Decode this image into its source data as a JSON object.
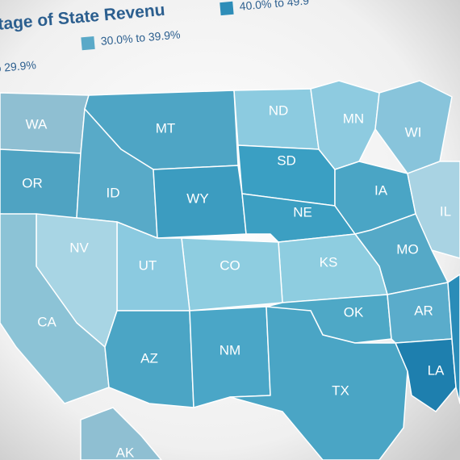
{
  "header": {
    "title": "tage of State Revenu"
  },
  "legend": [
    {
      "label": "% to 29.9%",
      "color": "#8fc9dd"
    },
    {
      "label": "30.0% to 39.9%",
      "color": "#5aa9c8"
    },
    {
      "label": "40.0% to 49.9",
      "color": "#2e8db8"
    }
  ],
  "states": [
    {
      "label": "WA",
      "color": "#8fbfd2"
    },
    {
      "label": "OR",
      "color": "#4fa3c2"
    },
    {
      "label": "MT",
      "color": "#4ea5c5"
    },
    {
      "label": "ID",
      "color": "#58aac8"
    },
    {
      "label": "WY",
      "color": "#3c9cc0"
    },
    {
      "label": "ND",
      "color": "#8ccbe0"
    },
    {
      "label": "SD",
      "color": "#3a9fc3"
    },
    {
      "label": "NE",
      "color": "#3c9fc2"
    },
    {
      "label": "MN",
      "color": "#8ecbe0"
    },
    {
      "label": "IA",
      "color": "#4aa5c5"
    },
    {
      "label": "WI",
      "color": "#88c4db"
    },
    {
      "label": "IL",
      "color": "#a9d3e3"
    },
    {
      "label": "MO",
      "color": "#55a9c7"
    },
    {
      "label": "KS",
      "color": "#8ecde0"
    },
    {
      "label": "CO",
      "color": "#8ecde0"
    },
    {
      "label": "UT",
      "color": "#8bcae0"
    },
    {
      "label": "NV",
      "color": "#a8d5e4"
    },
    {
      "label": "CA",
      "color": "#8cc3d6"
    },
    {
      "label": "AZ",
      "color": "#4ba5c5"
    },
    {
      "label": "NM",
      "color": "#4aa6c7"
    },
    {
      "label": "OK",
      "color": "#4ea8c6"
    },
    {
      "label": "TX",
      "color": "#4aa5c5"
    },
    {
      "label": "AR",
      "color": "#5aaccb"
    },
    {
      "label": "LA",
      "color": "#1e7fae"
    },
    {
      "label": "AK",
      "color": "#8fbfd2"
    }
  ]
}
